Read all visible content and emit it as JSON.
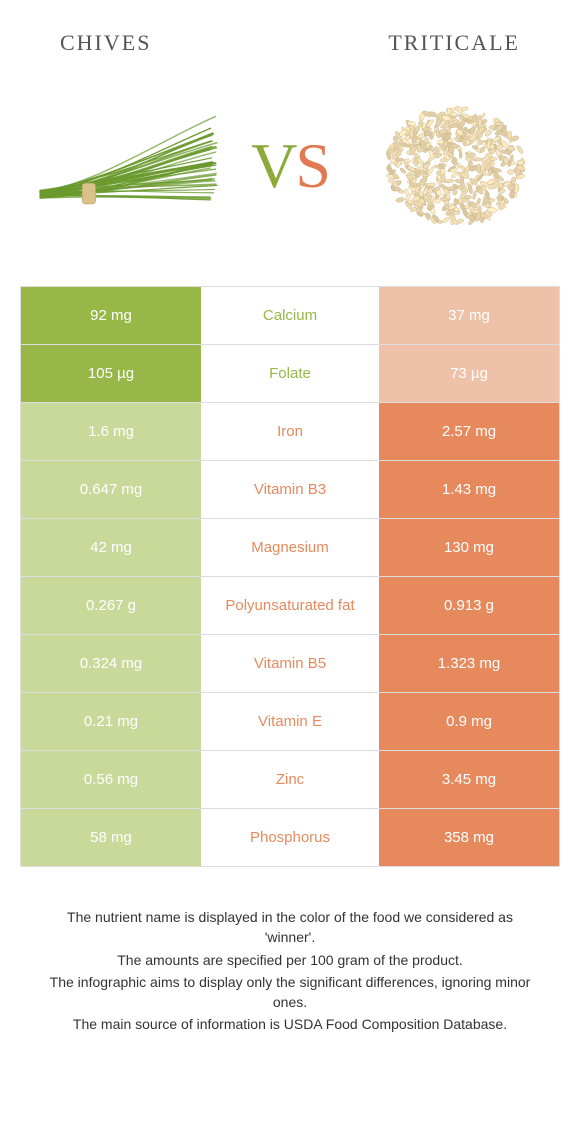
{
  "colors": {
    "left_winner": "#97b848",
    "left_loser": "#c9d99a",
    "right_winner": "#e68a5e",
    "right_loser": "#efc1a8",
    "mid_text_left": "#97b848",
    "mid_text_right": "#e68a5e",
    "chive_green": "#6a9a2e",
    "chive_band": "#d9c28a",
    "grain_fill": "#e8dcc0",
    "grain_stroke": "#c2b285"
  },
  "header": {
    "left": "Chives",
    "right": "Triticale"
  },
  "vs": {
    "v": "V",
    "s": "S"
  },
  "rows": [
    {
      "left": "92 mg",
      "label": "Calcium",
      "right": "37 mg",
      "winner": "left"
    },
    {
      "left": "105 µg",
      "label": "Folate",
      "right": "73 µg",
      "winner": "left"
    },
    {
      "left": "1.6 mg",
      "label": "Iron",
      "right": "2.57 mg",
      "winner": "right"
    },
    {
      "left": "0.647 mg",
      "label": "Vitamin B3",
      "right": "1.43 mg",
      "winner": "right"
    },
    {
      "left": "42 mg",
      "label": "Magnesium",
      "right": "130 mg",
      "winner": "right"
    },
    {
      "left": "0.267 g",
      "label": "Polyunsaturated fat",
      "right": "0.913 g",
      "winner": "right"
    },
    {
      "left": "0.324 mg",
      "label": "Vitamin B5",
      "right": "1.323 mg",
      "winner": "right"
    },
    {
      "left": "0.21 mg",
      "label": "Vitamin E",
      "right": "0.9 mg",
      "winner": "right"
    },
    {
      "left": "0.56 mg",
      "label": "Zinc",
      "right": "3.45 mg",
      "winner": "right"
    },
    {
      "left": "58 mg",
      "label": "Phosphorus",
      "right": "358 mg",
      "winner": "right"
    }
  ],
  "footer": {
    "line1": "The nutrient name is displayed in the color of the food we considered as 'winner'.",
    "line2": "The amounts are specified per 100 gram of the product.",
    "line3": "The infographic aims to display only the significant differences, ignoring minor ones.",
    "line4": "The main source of information is USDA Food Composition Database."
  }
}
